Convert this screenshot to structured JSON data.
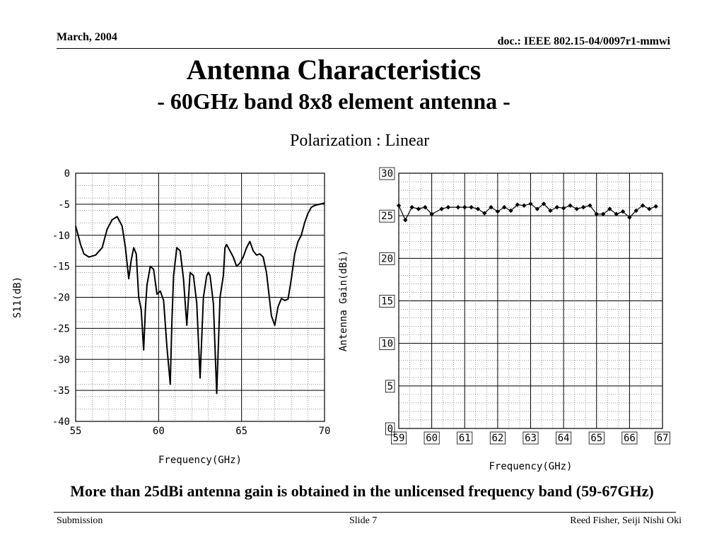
{
  "header": {
    "date": "March, 2004",
    "doc": "doc.: IEEE 802.15-04/0097r1-mmwi"
  },
  "title": "Antenna Characteristics",
  "subtitle": "- 60GHz band 8x8 element antenna -",
  "polarization": "Polarization : Linear",
  "caption": "More than 25dBi antenna gain is obtained in the unlicensed frequency band (59-67GHz)",
  "footer": {
    "left": "Submission",
    "center": "Slide 7",
    "right": "Reed Fisher, Seiji Nishi  Oki"
  },
  "chart_data": [
    {
      "type": "line",
      "xlabel": "Frequency(GHz)",
      "ylabel": "S11(dB)",
      "xlim": [
        55,
        70
      ],
      "ylim": [
        -40,
        0
      ],
      "x_ticks": [
        "55",
        "60",
        "65",
        "70"
      ],
      "y_ticks": [
        "0",
        "-5",
        "-10",
        "-15",
        "-20",
        "-25",
        "-30",
        "-35",
        "-40"
      ],
      "grid": true,
      "series": [
        {
          "x": [
            55,
            55.3,
            55.5,
            55.8,
            56.2,
            56.6,
            56.9,
            57.2,
            57.5,
            57.8,
            58.0,
            58.2,
            58.35,
            58.5,
            58.65,
            58.8,
            58.95,
            59.1,
            59.2,
            59.3,
            59.5,
            59.7,
            59.9,
            60.1,
            60.3,
            60.5,
            60.7,
            60.8,
            60.9,
            61.1,
            61.3,
            61.5,
            61.7,
            61.9,
            62.1,
            62.3,
            62.5,
            62.7,
            62.9,
            63.0,
            63.1,
            63.3,
            63.5,
            63.7,
            63.9,
            64.0,
            64.1,
            64.3,
            64.5,
            64.7,
            64.9,
            65.1,
            65.3,
            65.5,
            65.7,
            65.9,
            66.1,
            66.3,
            66.5,
            66.8,
            67.0,
            67.2,
            67.4,
            67.6,
            67.8,
            68.0,
            68.2,
            68.4,
            68.6,
            68.8,
            69.0,
            69.2,
            69.4,
            69.7,
            70.0
          ],
          "y": [
            -8.5,
            -11.5,
            -13,
            -13.5,
            -13.2,
            -12,
            -9,
            -7.5,
            -7,
            -8.5,
            -12,
            -17,
            -14,
            -12,
            -13,
            -20,
            -22,
            -28.5,
            -22,
            -18,
            -15,
            -15.5,
            -19.5,
            -19,
            -20.5,
            -28,
            -34,
            -24,
            -16.5,
            -12,
            -12.5,
            -17,
            -24.5,
            -16,
            -16.5,
            -21,
            -33,
            -20,
            -16.5,
            -16,
            -16.5,
            -21,
            -35.5,
            -20,
            -16.5,
            -12,
            -11.5,
            -12.5,
            -13.5,
            -15,
            -14.5,
            -13.5,
            -12,
            -11,
            -12.5,
            -13.2,
            -13,
            -13.5,
            -16,
            -23,
            -24.5,
            -21.5,
            -20.2,
            -20.5,
            -20.3,
            -17,
            -13,
            -11,
            -10,
            -8,
            -6.5,
            -5.5,
            -5.2,
            -5,
            -4.8
          ]
        }
      ]
    },
    {
      "type": "line",
      "xlabel": "Frequency(GHz)",
      "ylabel": "Antenna Gain(dBi)",
      "xlim": [
        59,
        67
      ],
      "ylim": [
        0,
        30
      ],
      "x_ticks": [
        "59",
        "60",
        "61",
        "62",
        "63",
        "64",
        "65",
        "66",
        "67"
      ],
      "y_ticks": [
        "0",
        "5",
        "10",
        "15",
        "20",
        "25",
        "30"
      ],
      "grid": true,
      "series": [
        {
          "x": [
            59.0,
            59.2,
            59.4,
            59.6,
            59.8,
            60.0,
            60.3,
            60.5,
            60.8,
            61.0,
            61.2,
            61.4,
            61.6,
            61.8,
            62.0,
            62.2,
            62.4,
            62.6,
            62.8,
            63.0,
            63.2,
            63.4,
            63.6,
            63.8,
            64.0,
            64.2,
            64.4,
            64.6,
            64.8,
            65.0,
            65.2,
            65.4,
            65.6,
            65.8,
            66.0,
            66.2,
            66.4,
            66.6,
            66.8
          ],
          "y": [
            26.2,
            24.5,
            26.0,
            25.8,
            26.0,
            25.2,
            25.8,
            26.0,
            26.0,
            26.0,
            26.0,
            25.8,
            25.3,
            26.0,
            25.5,
            26.0,
            25.6,
            26.3,
            26.2,
            26.4,
            25.8,
            26.4,
            25.6,
            26.0,
            25.9,
            26.2,
            25.8,
            26.0,
            26.2,
            25.2,
            25.2,
            25.8,
            25.2,
            25.5,
            24.8,
            25.6,
            26.2,
            25.8,
            26.1
          ]
        }
      ]
    }
  ]
}
